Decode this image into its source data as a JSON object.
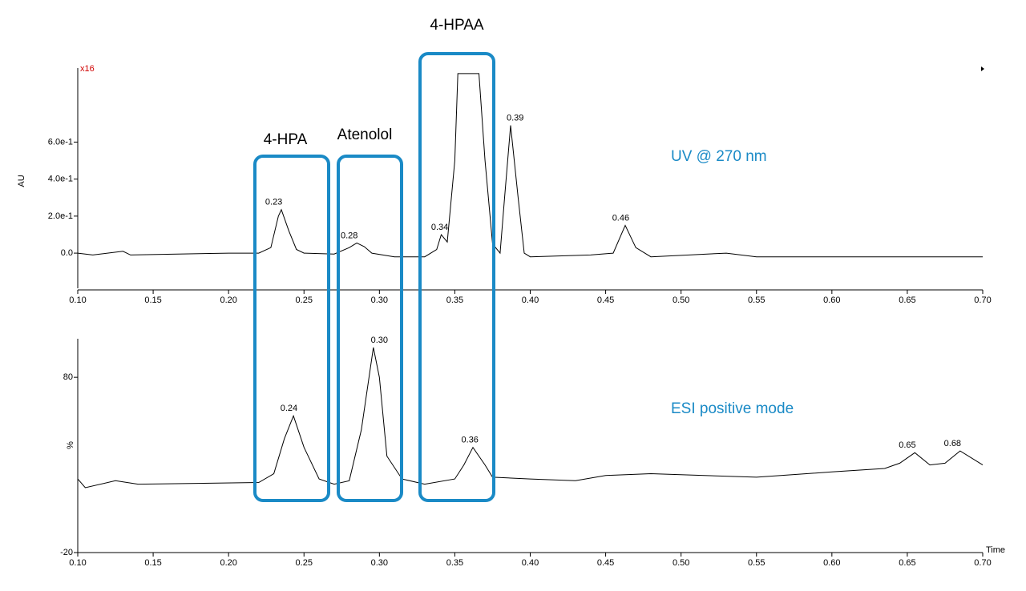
{
  "chart_data": [
    {
      "type": "line",
      "scale_factor": "x16",
      "y_label": "AU",
      "trace_label": "UV @ 270 nm",
      "annotations": [
        "4-HPA",
        "Atenolol",
        "4-HPAA"
      ],
      "color": "#000000",
      "x": [
        0.1,
        0.11,
        0.13,
        0.135,
        0.2,
        0.22,
        0.228,
        0.233,
        0.235,
        0.24,
        0.245,
        0.25,
        0.27,
        0.28,
        0.285,
        0.29,
        0.295,
        0.31,
        0.33,
        0.338,
        0.341,
        0.345,
        0.35,
        0.352,
        0.366,
        0.37,
        0.375,
        0.38,
        0.383,
        0.387,
        0.392,
        0.396,
        0.4,
        0.44,
        0.455,
        0.463,
        0.47,
        0.48,
        0.53,
        0.55,
        0.7
      ],
      "values": [
        0.0,
        -0.01,
        0.01,
        -0.01,
        0.0,
        0.0,
        0.03,
        0.2,
        0.235,
        0.12,
        0.02,
        0.0,
        -0.005,
        0.03,
        0.055,
        0.035,
        0.0,
        -0.02,
        -0.02,
        0.02,
        0.1,
        0.06,
        0.5,
        0.97,
        0.97,
        0.5,
        0.05,
        0.0,
        0.3,
        0.69,
        0.3,
        0.0,
        -0.02,
        -0.01,
        0.0,
        0.15,
        0.03,
        -0.02,
        0.0,
        -0.02,
        -0.02
      ],
      "peak_labels": [
        "0.23",
        "0.28",
        "0.34",
        "0.39",
        "0.46"
      ],
      "xlim": [
        0.1,
        0.7
      ],
      "xticks": [
        {
          "value": 0.1,
          "label": "0.10"
        },
        {
          "value": 0.15,
          "label": "0.15"
        },
        {
          "value": 0.2,
          "label": "0.20"
        },
        {
          "value": 0.25,
          "label": "0.25"
        },
        {
          "value": 0.3,
          "label": "0.30"
        },
        {
          "value": 0.35,
          "label": "0.35"
        },
        {
          "value": 0.4,
          "label": "0.40"
        },
        {
          "value": 0.45,
          "label": "0.45"
        },
        {
          "value": 0.5,
          "label": "0.50"
        },
        {
          "value": 0.55,
          "label": "0.55"
        },
        {
          "value": 0.6,
          "label": "0.60"
        },
        {
          "value": 0.65,
          "label": "0.65"
        },
        {
          "value": 0.7,
          "label": "0.70"
        }
      ],
      "ylim": [
        -0.19,
        1.0
      ],
      "yticks": [
        {
          "value": 0,
          "label": "0.0"
        },
        {
          "value": 0.2,
          "label": "2.0e-1"
        },
        {
          "value": 0.4,
          "label": "4.0e-1"
        },
        {
          "value": 0.6,
          "label": "6.0e-1"
        }
      ]
    },
    {
      "type": "line",
      "y_label": "%",
      "x_label": "Time",
      "trace_label": "ESI positive mode",
      "color": "#000000",
      "x": [
        0.1,
        0.105,
        0.125,
        0.14,
        0.22,
        0.23,
        0.237,
        0.243,
        0.25,
        0.26,
        0.27,
        0.28,
        0.288,
        0.296,
        0.3,
        0.305,
        0.315,
        0.33,
        0.35,
        0.356,
        0.362,
        0.37,
        0.375,
        0.4,
        0.43,
        0.45,
        0.48,
        0.55,
        0.6,
        0.635,
        0.645,
        0.655,
        0.665,
        0.675,
        0.685,
        0.7
      ],
      "values": [
        22,
        17,
        21,
        19,
        20,
        25,
        45,
        58,
        40,
        22,
        19,
        21,
        50,
        97,
        80,
        35,
        22,
        19,
        22,
        30,
        40,
        30,
        23,
        22,
        21,
        24,
        25,
        23,
        26,
        28,
        31,
        37,
        30,
        31,
        38,
        30
      ],
      "peak_labels": [
        "0.24",
        "0.30",
        "0.36",
        "0.65",
        "0.68"
      ],
      "xlim": [
        0.1,
        0.7
      ],
      "xticks": [
        {
          "value": 0.1,
          "label": "0.10"
        },
        {
          "value": 0.15,
          "label": "0.15"
        },
        {
          "value": 0.2,
          "label": "0.20"
        },
        {
          "value": 0.25,
          "label": "0.25"
        },
        {
          "value": 0.3,
          "label": "0.30"
        },
        {
          "value": 0.35,
          "label": "0.35"
        },
        {
          "value": 0.4,
          "label": "0.40"
        },
        {
          "value": 0.45,
          "label": "0.45"
        },
        {
          "value": 0.5,
          "label": "0.50"
        },
        {
          "value": 0.55,
          "label": "0.55"
        },
        {
          "value": 0.6,
          "label": "0.60"
        },
        {
          "value": 0.65,
          "label": "0.65"
        },
        {
          "value": 0.7,
          "label": "0.70"
        }
      ],
      "ylim": [
        -20,
        102
      ],
      "yticks": [
        -20,
        80
      ]
    }
  ]
}
